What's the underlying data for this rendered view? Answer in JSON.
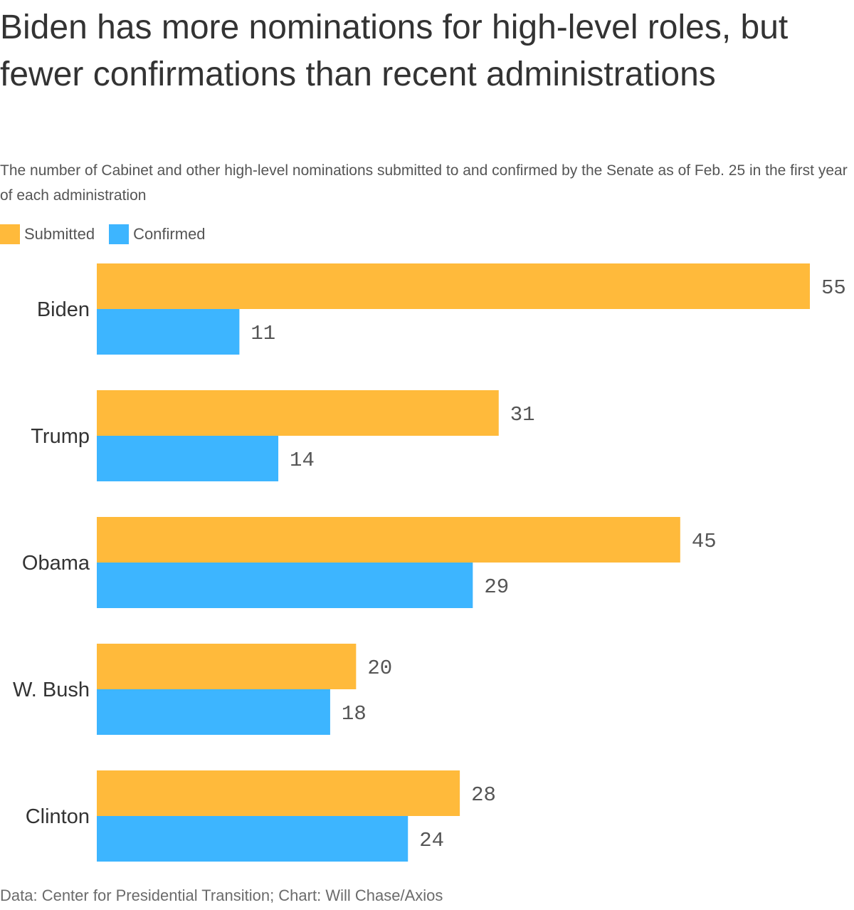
{
  "title": "Biden has more nominations for high-level roles, but fewer confirmations than recent administrations",
  "subtitle": "The number of Cabinet and other high-level nominations submitted to and confirmed by the Senate as of Feb. 25 in the first year of each administration",
  "legend": [
    {
      "label": "Submitted",
      "color": "#ffba3b"
    },
    {
      "label": "Confirmed",
      "color": "#3db5ff"
    }
  ],
  "source": "Data: Center for Presidential Transition; Chart: Will Chase/Axios",
  "chart_data": {
    "type": "bar",
    "orientation": "horizontal",
    "categories": [
      "Biden",
      "Trump",
      "Obama",
      "W. Bush",
      "Clinton"
    ],
    "series": [
      {
        "name": "Submitted",
        "values": [
          55,
          31,
          45,
          20,
          28
        ],
        "color": "#ffba3b"
      },
      {
        "name": "Confirmed",
        "values": [
          11,
          14,
          29,
          18,
          24
        ],
        "color": "#3db5ff"
      }
    ],
    "xlim": [
      0,
      55
    ],
    "grid": false,
    "legend_position": "top-left",
    "data_labels": true
  }
}
